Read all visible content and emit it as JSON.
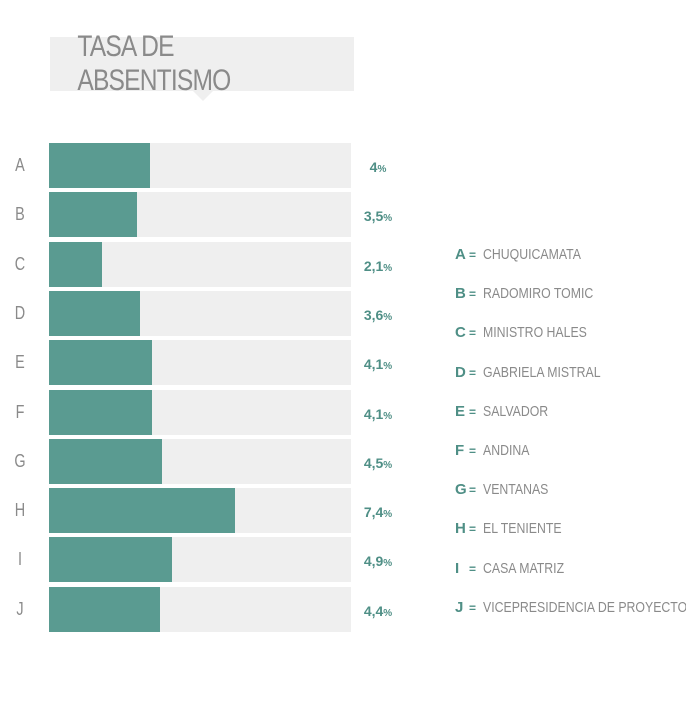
{
  "chart_data": {
    "type": "bar",
    "orientation": "horizontal",
    "title": "TASA DE ABSENTISMO",
    "categories": [
      "A",
      "B",
      "C",
      "D",
      "E",
      "F",
      "G",
      "H",
      "I",
      "J"
    ],
    "values": [
      4,
      3.5,
      2.1,
      3.6,
      4.1,
      4.1,
      4.5,
      7.4,
      4.9,
      4.4
    ],
    "value_labels": [
      "4",
      "3,5",
      "2,1",
      "3,6",
      "4,1",
      "4,1",
      "4,5",
      "7,4",
      "4,9",
      "4,4"
    ],
    "value_suffix": "%",
    "xlim": [
      0,
      12
    ],
    "grid": false,
    "bar_color": "#5a9b91",
    "track_color": "#efefef",
    "legend_position": "right",
    "legend": [
      {
        "letter": "A",
        "name": "CHUQUICAMATA"
      },
      {
        "letter": "B",
        "name": "RADOMIRO TOMIC"
      },
      {
        "letter": "C",
        "name": "MINISTRO HALES"
      },
      {
        "letter": "D",
        "name": "GABRIELA MISTRAL"
      },
      {
        "letter": "E",
        "name": "SALVADOR"
      },
      {
        "letter": "F",
        "name": "ANDINA"
      },
      {
        "letter": "G",
        "name": "VENTANAS"
      },
      {
        "letter": "H",
        "name": "EL TENIENTE"
      },
      {
        "letter": "I",
        "name": "CASA MATRIZ"
      },
      {
        "letter": "J",
        "name": "VICEPRESIDENCIA DE PROYECTOS"
      }
    ],
    "legend_separator": "="
  }
}
